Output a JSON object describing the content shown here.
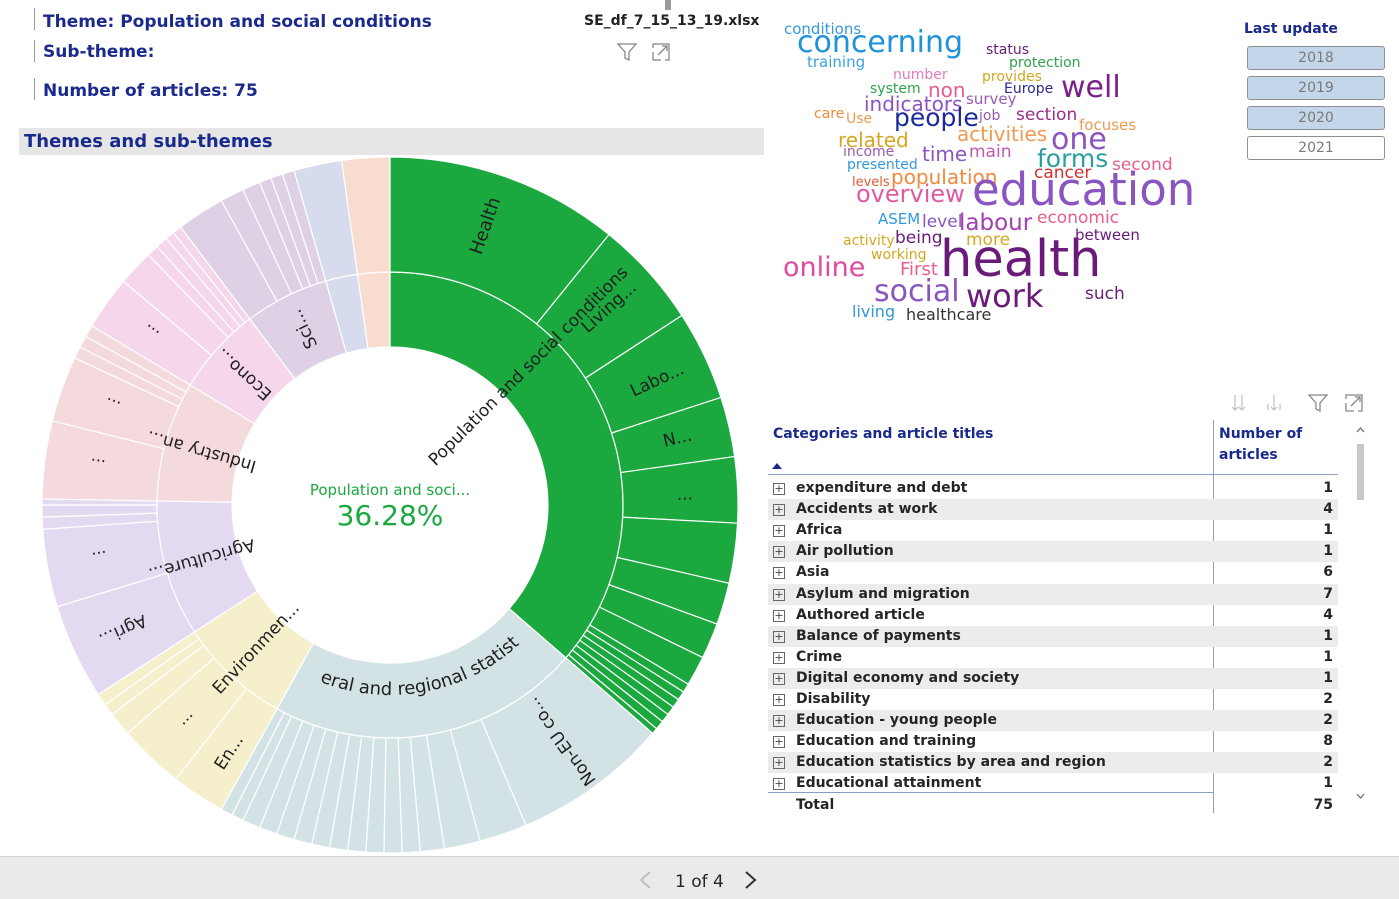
{
  "header": {
    "theme_label": "Theme: Population and social conditions",
    "subtheme_label": "Sub-theme:",
    "article_count_label": "Number of articles: 75",
    "file_name": "SE_df_7_15_13_19.xlsx"
  },
  "section": {
    "title": "Themes and sub-themes"
  },
  "sunburst": {
    "center_label": "Population and soci...",
    "center_value": "36.28%",
    "inner_labels": [
      "Population and social conditions",
      "General and regional statistic...",
      "Environmen...",
      "Agriculture...",
      "Industry an...",
      "Econo...",
      "Sci..."
    ],
    "outer_labels": [
      "Health",
      "Living...",
      "Labo...",
      "N...",
      "...",
      "Non-EU co...",
      "En...",
      "...",
      "Agri...",
      "...",
      "...",
      "...",
      "..."
    ],
    "colors": {
      "population": "#1aa83f",
      "general": "#d3e3e5",
      "environment": "#f5efcc",
      "agriculture": "#e3daf2",
      "industry": "#f5dadd",
      "economy": "#f5d6ea",
      "science": "#ded1e6",
      "other_blue": "#d6dcee",
      "other_peach": "#f8dccf"
    }
  },
  "wordcloud": {
    "words": [
      {
        "text": "conditions",
        "color": "#3399dd"
      },
      {
        "text": "concerning",
        "color": "#1f93d8"
      },
      {
        "text": "status",
        "color": "#6a1b7a"
      },
      {
        "text": "training",
        "color": "#3aa2e0"
      },
      {
        "text": "protection",
        "color": "#2fa24a"
      },
      {
        "text": "number",
        "color": "#e57ac0"
      },
      {
        "text": "provides",
        "color": "#d3a81f"
      },
      {
        "text": "non",
        "color": "#e85d8c"
      },
      {
        "text": "system",
        "color": "#2fa24a"
      },
      {
        "text": "Europe",
        "color": "#2a2a8c"
      },
      {
        "text": "well",
        "color": "#7b1f8c"
      },
      {
        "text": "survey",
        "color": "#9a5ab0"
      },
      {
        "text": "indicators",
        "color": "#8a55c0"
      },
      {
        "text": "care",
        "color": "#ef8a3c"
      },
      {
        "text": "Use",
        "color": "#ef9a50"
      },
      {
        "text": "people",
        "color": "#1a2a9c"
      },
      {
        "text": "job",
        "color": "#9a5ab0"
      },
      {
        "text": "section",
        "color": "#9a2a8c"
      },
      {
        "text": "focuses",
        "color": "#ef9a50"
      },
      {
        "text": "activities",
        "color": "#ef9a50"
      },
      {
        "text": "related",
        "color": "#d3a81f"
      },
      {
        "text": "one",
        "color": "#8a55c0"
      },
      {
        "text": "income",
        "color": "#9a5ab0"
      },
      {
        "text": "time",
        "color": "#8a55c0"
      },
      {
        "text": "main",
        "color": "#c05ab0"
      },
      {
        "text": "forms",
        "color": "#2aa0a0"
      },
      {
        "text": "second",
        "color": "#e85d8c"
      },
      {
        "text": "presented",
        "color": "#3399dd"
      },
      {
        "text": "population",
        "color": "#ef8a3c"
      },
      {
        "text": "cancer",
        "color": "#d03030"
      },
      {
        "text": "levels",
        "color": "#e05a30"
      },
      {
        "text": "overview",
        "color": "#e05aa0"
      },
      {
        "text": "education",
        "color": "#8a55c0"
      },
      {
        "text": "ASEM",
        "color": "#3399dd"
      },
      {
        "text": "level",
        "color": "#8a55c0"
      },
      {
        "text": "labour",
        "color": "#a040b0"
      },
      {
        "text": "economic",
        "color": "#e85d8c"
      },
      {
        "text": "activity",
        "color": "#d3a81f"
      },
      {
        "text": "being",
        "color": "#6a1b7a"
      },
      {
        "text": "more",
        "color": "#d3a81f"
      },
      {
        "text": "between",
        "color": "#6a1b7a"
      },
      {
        "text": "working",
        "color": "#d3a81f"
      },
      {
        "text": "online",
        "color": "#e04aa0"
      },
      {
        "text": "First",
        "color": "#e85d8c"
      },
      {
        "text": "health",
        "color": "#6a1b7a"
      },
      {
        "text": "social",
        "color": "#8a55c0"
      },
      {
        "text": "work",
        "color": "#6a1b7a"
      },
      {
        "text": "such",
        "color": "#6a1b7a"
      },
      {
        "text": "living",
        "color": "#3399dd"
      },
      {
        "text": "healthcare",
        "color": "#333333"
      }
    ]
  },
  "last_update": {
    "title": "Last update",
    "years": [
      {
        "label": "2018",
        "selected": true
      },
      {
        "label": "2019",
        "selected": true
      },
      {
        "label": "2020",
        "selected": true
      },
      {
        "label": "2021",
        "selected": false
      }
    ]
  },
  "table": {
    "col1_header": "Categories and article titles",
    "col2_header_line1": "Number of",
    "col2_header_line2": "articles",
    "rows": [
      {
        "name": "expenditure and debt",
        "count": "1"
      },
      {
        "name": "Accidents at work",
        "count": "4"
      },
      {
        "name": "Africa",
        "count": "1"
      },
      {
        "name": "Air pollution",
        "count": "1"
      },
      {
        "name": "Asia",
        "count": "6"
      },
      {
        "name": "Asylum and migration",
        "count": "7"
      },
      {
        "name": "Authored article",
        "count": "4"
      },
      {
        "name": "Balance of payments",
        "count": "1"
      },
      {
        "name": "Crime",
        "count": "1"
      },
      {
        "name": "Digital economy and society",
        "count": "1"
      },
      {
        "name": "Disability",
        "count": "2"
      },
      {
        "name": "Education - young people",
        "count": "2"
      },
      {
        "name": "Education and training",
        "count": "8"
      },
      {
        "name": "Education statistics by area and region",
        "count": "2"
      },
      {
        "name": "Educational attainment",
        "count": "1"
      }
    ],
    "total_label": "Total",
    "total_value": "75"
  },
  "pager": {
    "page_text": "1 of 4"
  }
}
